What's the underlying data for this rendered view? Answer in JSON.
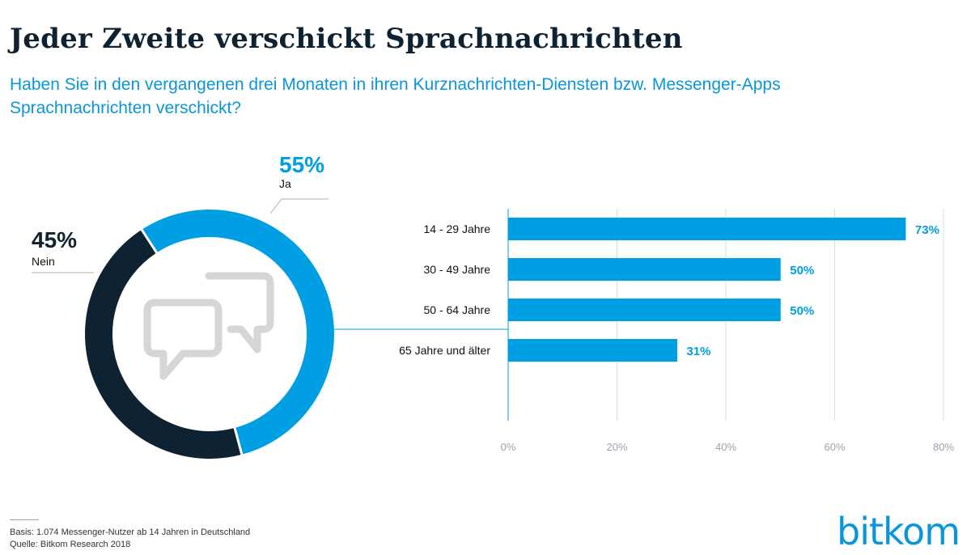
{
  "header": {
    "title": "Jeder Zweite verschickt Sprachnachrichten",
    "subtitle": "Haben Sie in den vergangenen drei Monaten in ihren Kurznachrichten-Diensten bzw. Messenger-Apps Sprachnachrichten verschickt?"
  },
  "footer": {
    "basis": "Basis: 1.074 Messenger-Nutzer ab 14 Jahren in Deutschland",
    "source": "Quelle: Bitkom Research 2018",
    "logo": "bitkom"
  },
  "colors": {
    "blue": "#009fe3",
    "dark": "#0e2231",
    "grid": "#d9dee2",
    "icon": "#d6d6d6"
  },
  "icon_name": "speech-bubbles-icon",
  "chart_data": [
    {
      "type": "pie",
      "variant": "donut",
      "slices": [
        {
          "label": "Ja",
          "value": 55,
          "value_label": "55%"
        },
        {
          "label": "Nein",
          "value": 45,
          "value_label": "45%"
        }
      ]
    },
    {
      "type": "bar",
      "orientation": "horizontal",
      "categories": [
        "14 - 29 Jahre",
        "30 - 49 Jahre",
        "50 - 64 Jahre",
        "65 Jahre und älter"
      ],
      "values": [
        73,
        50,
        50,
        31
      ],
      "value_labels": [
        "73%",
        "50%",
        "50%",
        "31%"
      ],
      "xlim": [
        0,
        80
      ],
      "xticks": [
        0,
        20,
        40,
        60,
        80
      ],
      "xtick_labels": [
        "0%",
        "20%",
        "40%",
        "60%",
        "80%"
      ],
      "grid": true
    }
  ]
}
